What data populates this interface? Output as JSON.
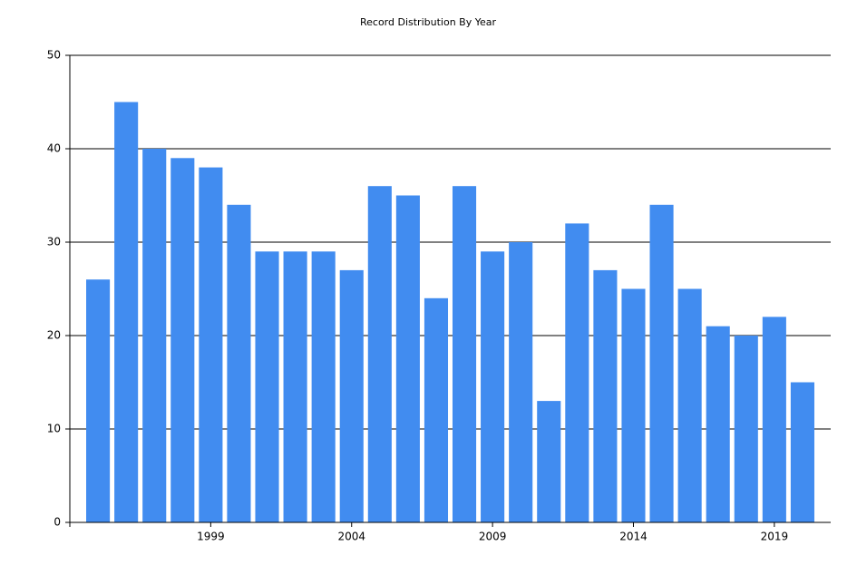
{
  "chart_data": {
    "type": "bar",
    "title": "Record Distribution By Year",
    "x": [
      1995,
      1996,
      1997,
      1998,
      1999,
      2000,
      2001,
      2002,
      2003,
      2004,
      2005,
      2006,
      2007,
      2008,
      2009,
      2010,
      2011,
      2012,
      2013,
      2014,
      2015,
      2016,
      2017,
      2018,
      2019,
      2020
    ],
    "values": [
      26,
      45,
      40,
      39,
      38,
      34,
      29,
      29,
      29,
      27,
      36,
      35,
      24,
      36,
      29,
      30,
      13,
      32,
      27,
      25,
      34,
      25,
      21,
      20,
      22,
      15
    ],
    "color": "#418cf0",
    "xlim": [
      1994,
      2021
    ],
    "xticks": [
      1999,
      2004,
      2009,
      2014,
      2019
    ],
    "ylim": [
      0,
      50
    ],
    "yticks": [
      0,
      10,
      20,
      30,
      40,
      50
    ],
    "grid": true
  }
}
